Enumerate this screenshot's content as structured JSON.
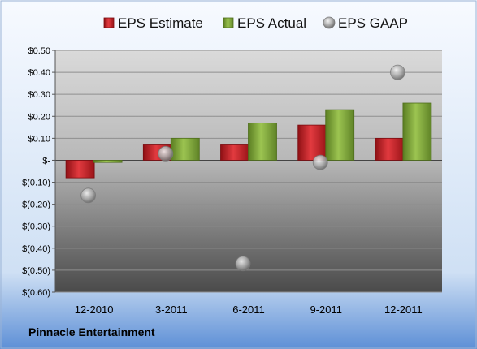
{
  "company": "Pinnacle Entertainment",
  "chart_data": {
    "type": "bar",
    "categories": [
      "12-2010",
      "3-2011",
      "6-2011",
      "9-2011",
      "12-2011"
    ],
    "series": [
      {
        "name": "EPS Estimate",
        "type": "bar",
        "color": "#cc2a2f",
        "values": [
          -0.08,
          0.07,
          0.07,
          0.16,
          0.1
        ]
      },
      {
        "name": "EPS Actual",
        "type": "bar",
        "color": "#7ea83a",
        "values": [
          -0.01,
          0.1,
          0.17,
          0.23,
          0.26
        ]
      },
      {
        "name": "EPS GAAP",
        "type": "scatter",
        "color": "#a8a8a8",
        "values": [
          -0.16,
          0.03,
          -0.47,
          -0.01,
          0.4
        ]
      }
    ],
    "ylim": [
      -0.6,
      0.5
    ],
    "yticks": [
      0.5,
      0.4,
      0.3,
      0.2,
      0.1,
      0,
      -0.1,
      -0.2,
      -0.3,
      -0.4,
      -0.5,
      -0.6
    ],
    "ytick_labels": [
      "$0.50",
      "$0.40",
      "$0.30",
      "$0.20",
      "$0.10",
      "$-",
      "$(0.10)",
      "$(0.20)",
      "$(0.30)",
      "$(0.40)",
      "$(0.50)",
      "$(0.60)"
    ],
    "legend_position": "top",
    "grid": true,
    "title": "",
    "xlabel": "",
    "ylabel": ""
  }
}
